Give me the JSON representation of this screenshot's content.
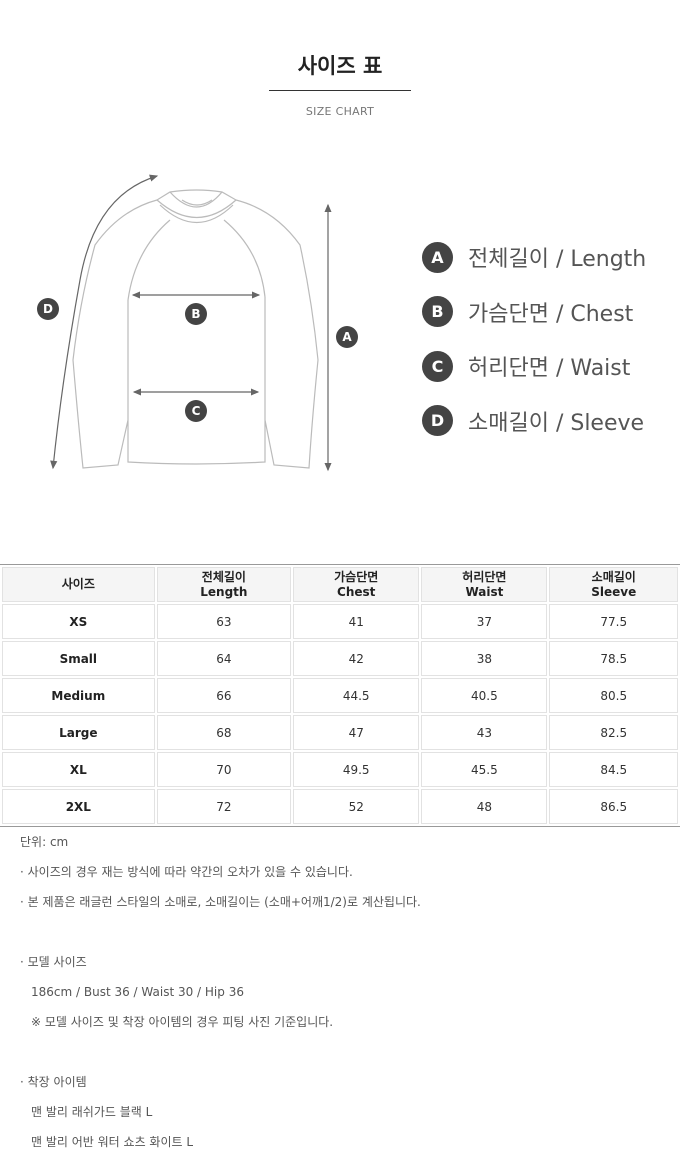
{
  "header": {
    "title": "사이즈 표",
    "subtitle": "SIZE CHART"
  },
  "diagram": {
    "markers": [
      "A",
      "B",
      "C",
      "D"
    ],
    "line_color": "#bbbbbb",
    "arrow_color": "#666666",
    "badge_color": "#444444"
  },
  "legend": [
    {
      "letter": "A",
      "label": "전체길이 / Length"
    },
    {
      "letter": "B",
      "label": "가슴단면 / Chest"
    },
    {
      "letter": "C",
      "label": "허리단면 / Waist"
    },
    {
      "letter": "D",
      "label": "소매길이 / Sleeve"
    }
  ],
  "table": {
    "headers": [
      {
        "ko": "사이즈",
        "en": ""
      },
      {
        "ko": "전체길이",
        "en": "Length"
      },
      {
        "ko": "가슴단면",
        "en": "Chest"
      },
      {
        "ko": "허리단면",
        "en": "Waist"
      },
      {
        "ko": "소매길이",
        "en": "Sleeve"
      }
    ],
    "rows": [
      [
        "XS",
        "63",
        "41",
        "37",
        "77.5"
      ],
      [
        "Small",
        "64",
        "42",
        "38",
        "78.5"
      ],
      [
        "Medium",
        "66",
        "44.5",
        "40.5",
        "80.5"
      ],
      [
        "Large",
        "68",
        "47",
        "43",
        "82.5"
      ],
      [
        "XL",
        "70",
        "49.5",
        "45.5",
        "84.5"
      ],
      [
        "2XL",
        "72",
        "52",
        "48",
        "86.5"
      ]
    ]
  },
  "notes": {
    "unit": "단위: cm",
    "note1": "· 사이즈의 경우 재는 방식에 따라 약간의 오차가 있을 수 있습니다.",
    "note2": "· 본 제품은 래글런 스타일의 소매로, 소매길이는 (소매+어깨1/2)로 계산됩니다.",
    "model_heading": "· 모델 사이즈",
    "model_size": "186cm / Bust 36 / Waist 30 / Hip 36",
    "model_note": "※ 모델 사이즈 및 착장 아이템의 경우 피팅 사진 기준입니다.",
    "items_heading": "· 착장 아이템",
    "items": [
      "맨 발리 래쉬가드 블랙 L",
      "맨 발리 어반 워터 쇼츠 화이트 L"
    ]
  }
}
